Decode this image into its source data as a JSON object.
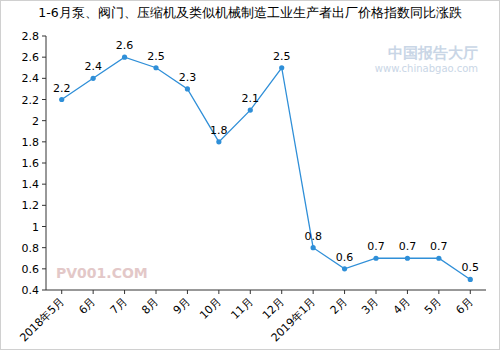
{
  "chart_data": {
    "type": "line",
    "title": "1-6月泵、阀门、压缩机及类似机械制造工业生产者出厂价格指数同比涨跌",
    "categories": [
      "2018年5月",
      "6月",
      "7月",
      "8月",
      "9月",
      "10月",
      "11月",
      "12月",
      "2019年1月",
      "2月",
      "3月",
      "4月",
      "5月",
      "6月"
    ],
    "values": [
      2.2,
      2.4,
      2.6,
      2.5,
      2.3,
      1.8,
      2.1,
      2.5,
      0.8,
      0.6,
      0.7,
      0.7,
      0.7,
      0.5
    ],
    "color": "#2f8fd8",
    "marker": "circle",
    "ylim": [
      0.4,
      2.8
    ],
    "yticks": [
      0.4,
      0.6,
      0.8,
      1,
      1.2,
      1.4,
      1.6,
      1.8,
      2,
      2.2,
      2.4,
      2.6,
      2.8
    ],
    "grid": false,
    "data_labels": true,
    "annotations": [
      "PV001.COM",
      "中国报告大厅",
      "www.chinabgao.com"
    ]
  }
}
